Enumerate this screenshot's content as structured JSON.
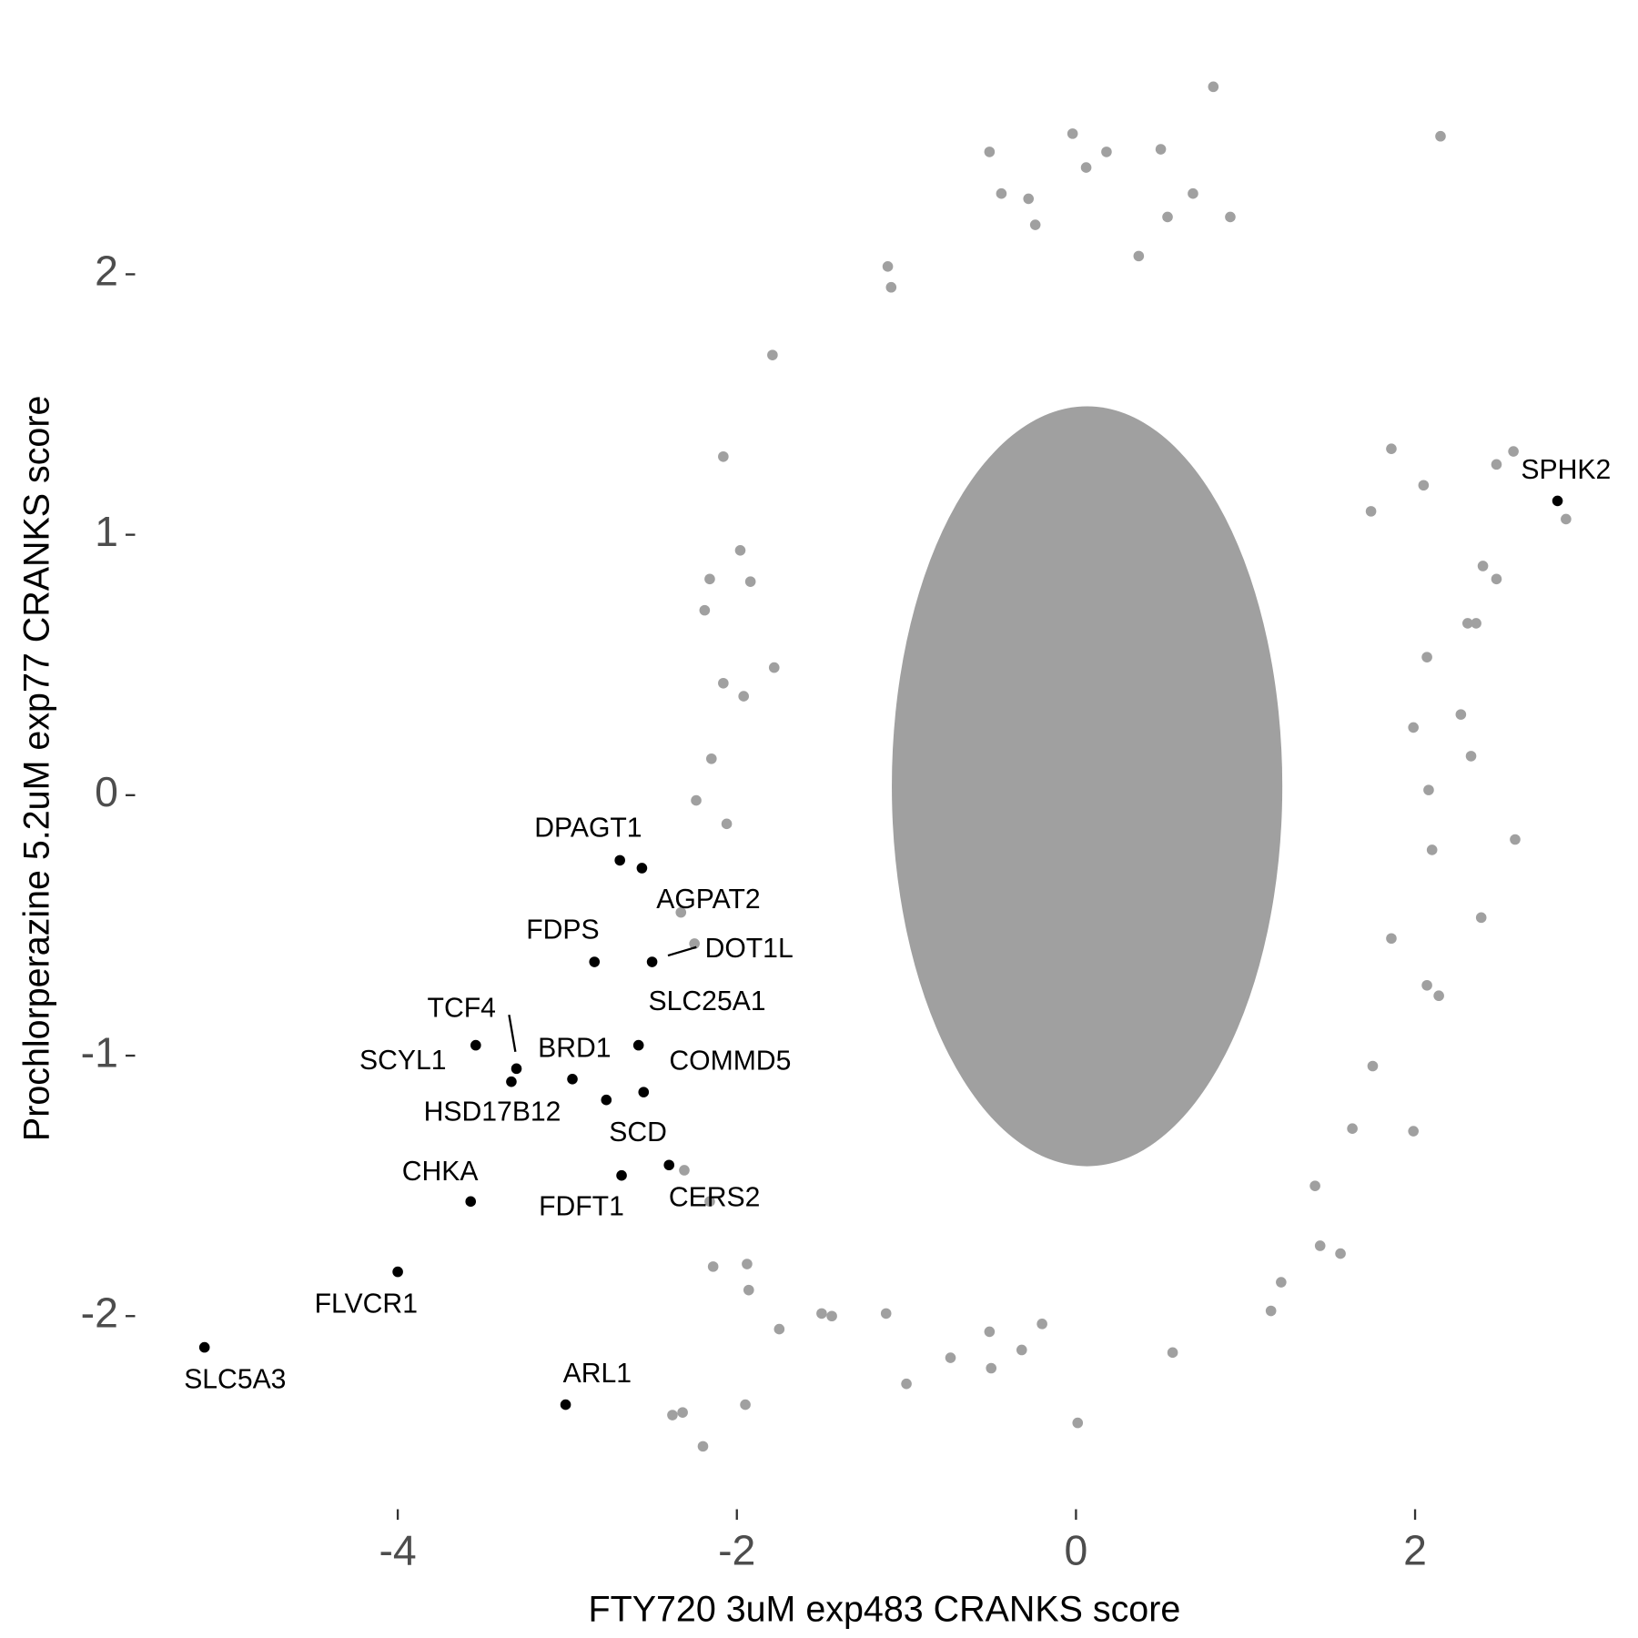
{
  "chart_data": {
    "type": "scatter",
    "xlabel": "FTY720 3uM exp483 CRANKS score",
    "ylabel": "Prochlorperazine 5.2uM exp77 CRANKS score",
    "xlim": [
      -5.35,
      3.24
    ],
    "ylim": [
      -2.62,
      2.81
    ],
    "xticks": [
      -4,
      -2,
      0,
      2
    ],
    "yticks": [
      -2,
      -1,
      0,
      1,
      2
    ],
    "grid": false,
    "series": [
      {
        "color": "#a0a0a0",
        "x": [
          0.81,
          2.15,
          -0.02,
          -0.51,
          0.06,
          0.18,
          0.5,
          -0.44,
          -0.28,
          0.69,
          0.54,
          0.91,
          -0.24,
          -1.11,
          -1.09,
          0.37,
          -1.79,
          -2.08,
          1.86,
          2.58,
          2.48,
          2.89,
          2.05,
          1.74,
          2.4,
          2.48,
          -1.98,
          -1.92,
          -2.16,
          -2.19,
          2.31,
          2.36,
          2.07,
          2.27,
          1.99,
          2.33,
          2.08,
          2.59,
          2.1,
          2.39,
          1.86,
          2.07,
          2.14,
          -2.15,
          -2.24,
          -2.06,
          -1.78,
          -2.08,
          -1.96,
          -2.33,
          -2.25,
          -2.31,
          -2.16,
          -2.14,
          -1.94,
          -1.93,
          -1.75,
          -2.38,
          -2.32,
          -2.2,
          -1.95,
          -1.5,
          -1.44,
          -1.0,
          -0.74,
          -0.5,
          -0.32,
          -0.2,
          0.01,
          0.57,
          1.15,
          1.21,
          1.44,
          1.56,
          1.63,
          1.75,
          1.99,
          1.41,
          -1.12,
          -0.51
        ],
        "y": [
          2.72,
          2.53,
          2.54,
          2.47,
          2.41,
          2.47,
          2.48,
          2.31,
          2.29,
          2.31,
          2.22,
          2.22,
          2.19,
          2.03,
          1.95,
          2.07,
          1.69,
          1.3,
          1.33,
          1.32,
          1.27,
          1.06,
          1.19,
          1.09,
          0.88,
          0.83,
          0.94,
          0.82,
          0.83,
          0.71,
          0.66,
          0.66,
          0.53,
          0.31,
          0.26,
          0.15,
          0.02,
          -0.17,
          -0.21,
          -0.47,
          -0.55,
          -0.73,
          -0.77,
          0.14,
          -0.02,
          -0.11,
          0.49,
          0.43,
          0.38,
          -0.45,
          -0.57,
          -1.44,
          -1.56,
          -1.81,
          -1.8,
          -1.9,
          -2.05,
          -2.38,
          -2.37,
          -2.5,
          -2.34,
          -1.99,
          -2.0,
          -2.26,
          -2.16,
          -2.2,
          -2.13,
          -2.03,
          -2.41,
          -2.14,
          -1.98,
          -1.87,
          -1.73,
          -1.76,
          -1.28,
          -1.04,
          -1.29,
          -1.5,
          -1.99,
          -2.06
        ]
      },
      {
        "color": "#000000",
        "labels": [
          "SPHK2",
          "DPAGT1",
          "AGPAT2",
          "FDPS",
          "DOT1L",
          "SLC25A1",
          "TCF4",
          "SCYL1",
          "BRD1",
          "COMMD5",
          "HSD17B12",
          "SCD",
          "CERS2",
          "FDFT1",
          "CHKA",
          "FLVCR1",
          "SLC5A3",
          "ARL1"
        ],
        "x": [
          2.84,
          -2.69,
          -2.56,
          -2.84,
          -2.5,
          -2.58,
          -3.3,
          -3.54,
          -2.97,
          -2.55,
          -3.33,
          -2.77,
          -2.4,
          -2.68,
          -3.57,
          -4.0,
          -5.14,
          -3.01
        ],
        "y": [
          1.13,
          -0.25,
          -0.28,
          -0.64,
          -0.64,
          -0.96,
          -1.05,
          -0.96,
          -1.09,
          -1.14,
          -1.1,
          -1.17,
          -1.42,
          -1.46,
          -1.56,
          -1.83,
          -2.12,
          -2.34
        ]
      }
    ]
  }
}
